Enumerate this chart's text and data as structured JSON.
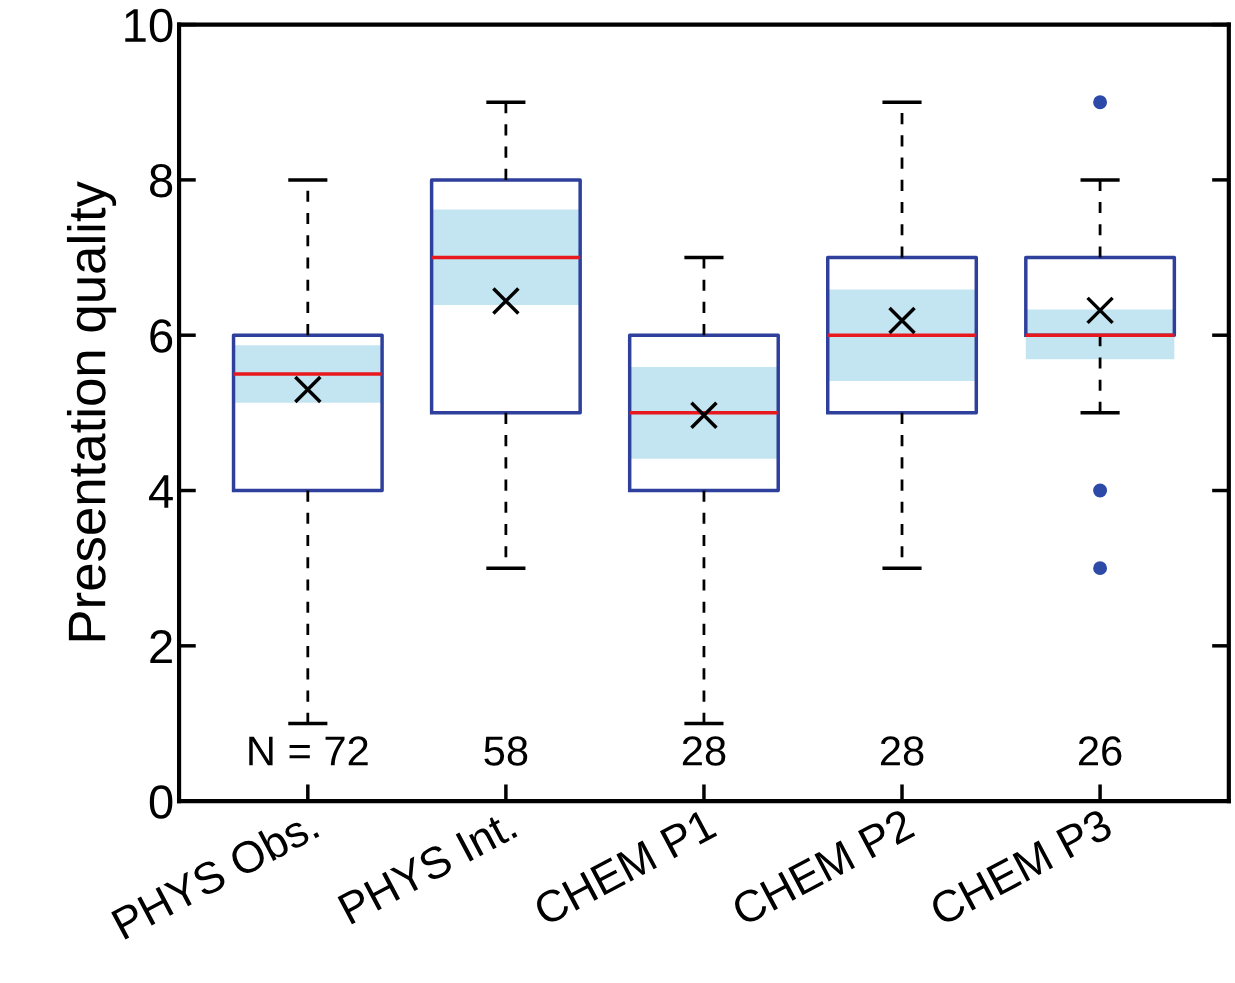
{
  "chart_data": {
    "type": "box",
    "ylabel": "Presentation quality",
    "categories": [
      "PHYS Obs.",
      "PHYS Int.",
      "CHEM P1",
      "CHEM P2",
      "CHEM P3"
    ],
    "ylim": [
      0,
      10
    ],
    "yticks": [
      0,
      2,
      4,
      6,
      8,
      10
    ],
    "grid": false,
    "legend": false,
    "boxes": [
      {
        "low": 1,
        "q1": 4,
        "median": 5.5,
        "q3": 6,
        "high": 8,
        "mean": 5.3
      },
      {
        "low": 3,
        "q1": 5,
        "median": 7,
        "q3": 8,
        "high": 9,
        "mean": 6.44
      },
      {
        "low": 1,
        "q1": 4,
        "median": 5,
        "q3": 6,
        "high": 7,
        "mean": 4.97
      },
      {
        "low": 3,
        "q1": 5,
        "median": 6,
        "q3": 7,
        "high": 9,
        "mean": 6.19
      },
      {
        "low": 5,
        "q1": 6,
        "median": 6,
        "q3": 7,
        "high": 8,
        "mean": 6.32,
        "outliers": [
          9,
          4,
          3
        ]
      }
    ],
    "series": [
      {
        "type": "bar",
        "color": "#c3e5f1",
        "base": [
          5.13,
          6.39,
          4.41,
          5.41,
          5.69
        ],
        "values": [
          0.74,
          1.23,
          1.18,
          1.18,
          0.64
        ]
      }
    ],
    "annotations": [
      "N = 72",
      "58",
      "28",
      "28",
      "26"
    ]
  }
}
